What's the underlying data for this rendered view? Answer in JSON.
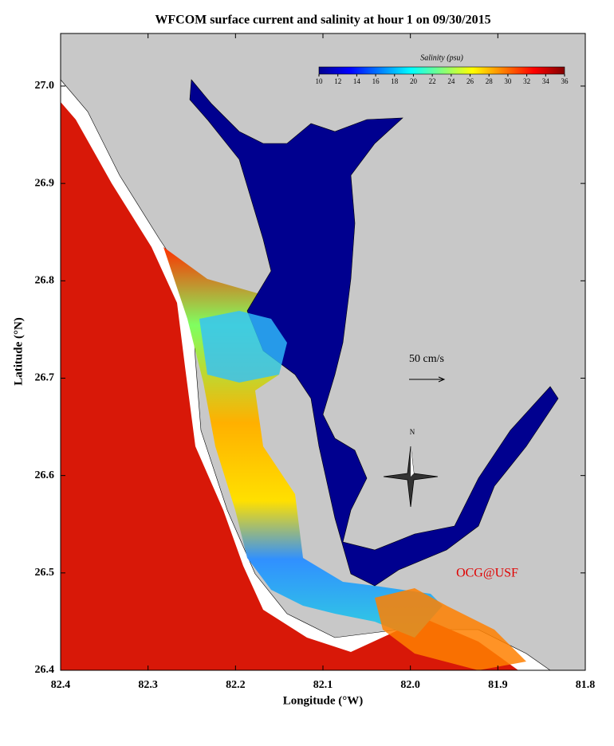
{
  "chart_data": {
    "type": "map",
    "title": "WFCOM surface current and salinity at hour 1 on 09/30/2015",
    "x_label": "Longitude (°W)",
    "y_label": "Latitude (°N)",
    "xlim": [
      82.4,
      81.8
    ],
    "xticks": [
      82.4,
      82.3,
      82.2,
      82.1,
      {
        "value": 82,
        "label": "82.0"
      },
      81.9,
      81.8
    ],
    "ylim": [
      26.4,
      27.054
    ],
    "yticks": [
      26.4,
      26.5,
      26.6,
      26.7,
      26.8,
      26.9,
      {
        "value": 27,
        "label": "27.0"
      }
    ],
    "colorbar_label": "Salinity (psu)",
    "clim": [
      10,
      36
    ],
    "colorbar_ticks": [
      10,
      12,
      14,
      16,
      18,
      20,
      22,
      24,
      26,
      28,
      30,
      32,
      34,
      36
    ],
    "scale_label": "50 cm/s",
    "compass_label": "N",
    "credit": "OCG@USF"
  }
}
